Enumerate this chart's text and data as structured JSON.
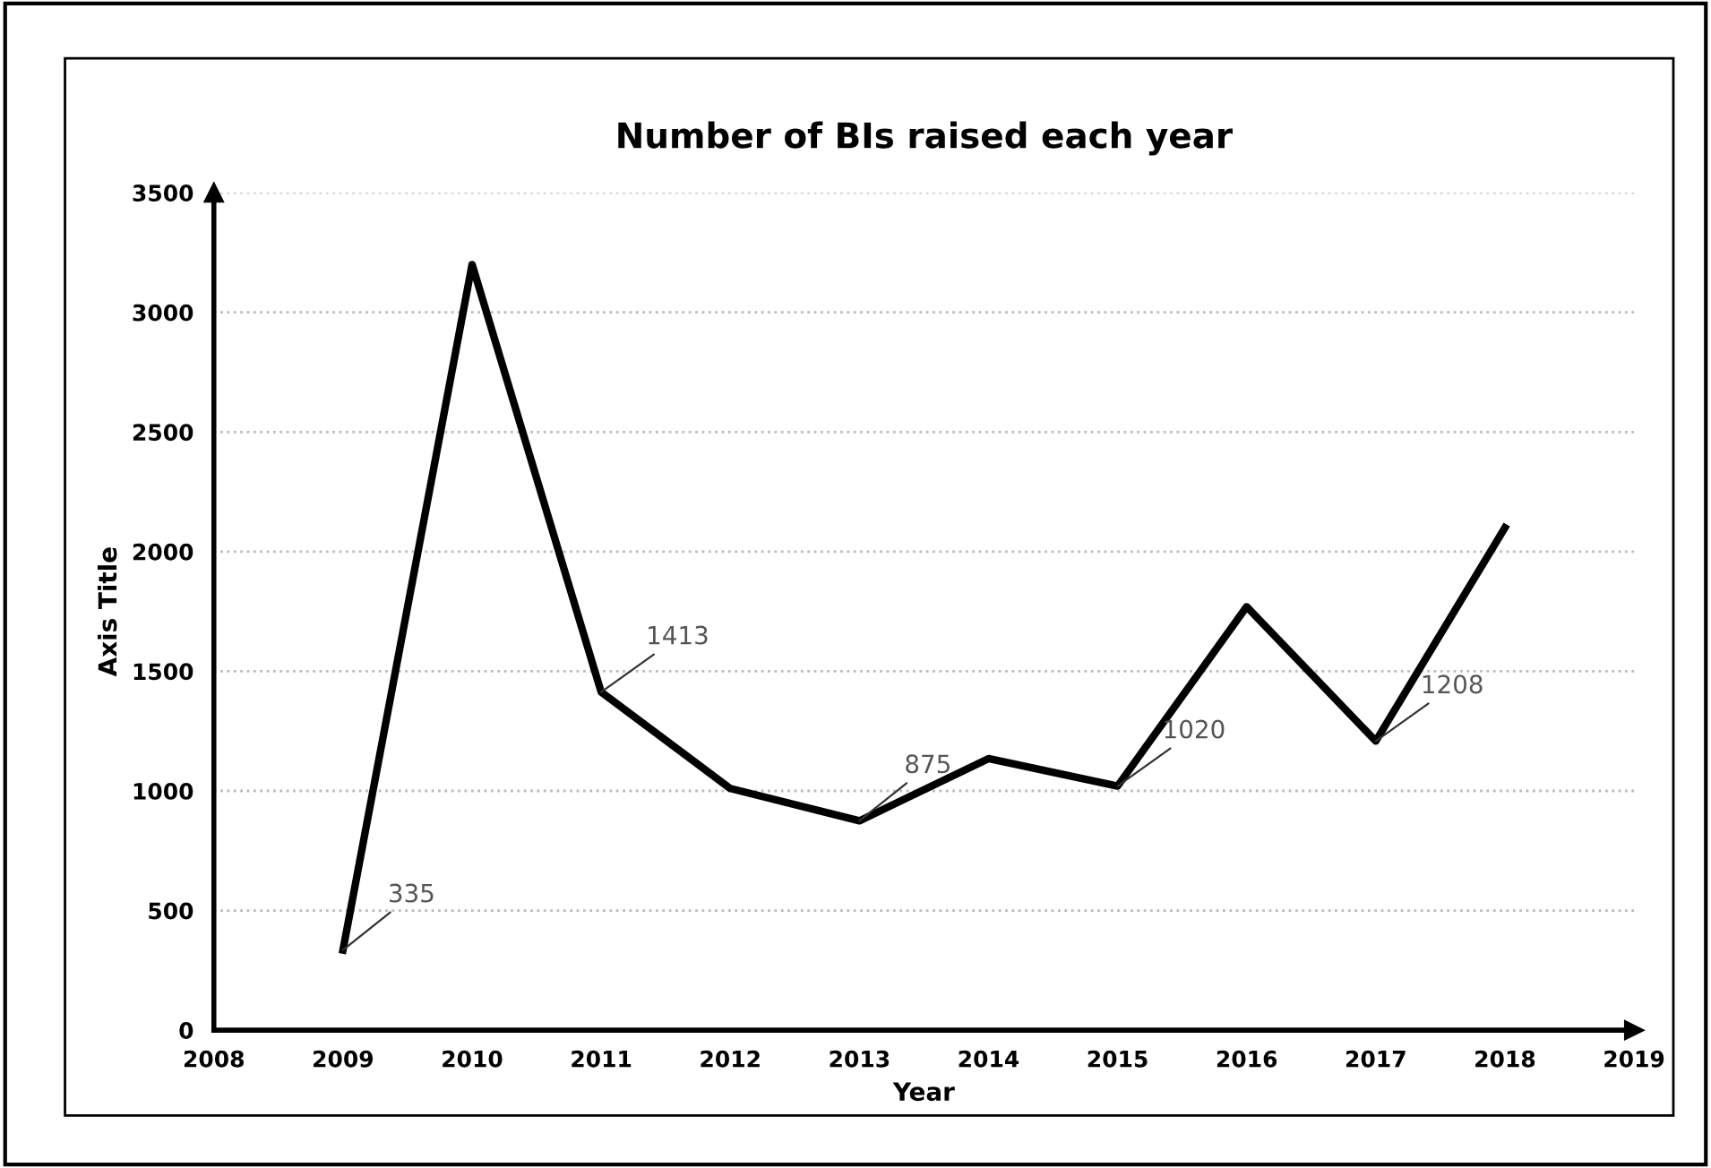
{
  "chart_data": {
    "type": "line",
    "title": "Number of BIs raised each year",
    "xlabel": "Year",
    "ylabel": "Axis Title",
    "x": [
      2009,
      2010,
      2011,
      2012,
      2013,
      2014,
      2015,
      2016,
      2017,
      2018
    ],
    "series": [
      {
        "color": "#000000",
        "values": [
          335,
          3200,
          1413,
          1010,
          875,
          1135,
          1020,
          1770,
          1208,
          2100
        ],
        "value_labels": [
          "335",
          null,
          "1413",
          null,
          "875",
          null,
          "1020",
          null,
          "1208",
          null
        ]
      }
    ],
    "xlim": [
      2008,
      2019
    ],
    "xticks": [
      2008,
      2009,
      2010,
      2011,
      2012,
      2013,
      2014,
      2015,
      2016,
      2017,
      2018,
      2019
    ],
    "ylim": [
      0,
      3500
    ],
    "yticks": [
      0,
      500,
      1000,
      1500,
      2000,
      2500,
      3000,
      3500
    ],
    "grid": "y",
    "legend": false,
    "marker": "none",
    "line_style": "solid"
  }
}
